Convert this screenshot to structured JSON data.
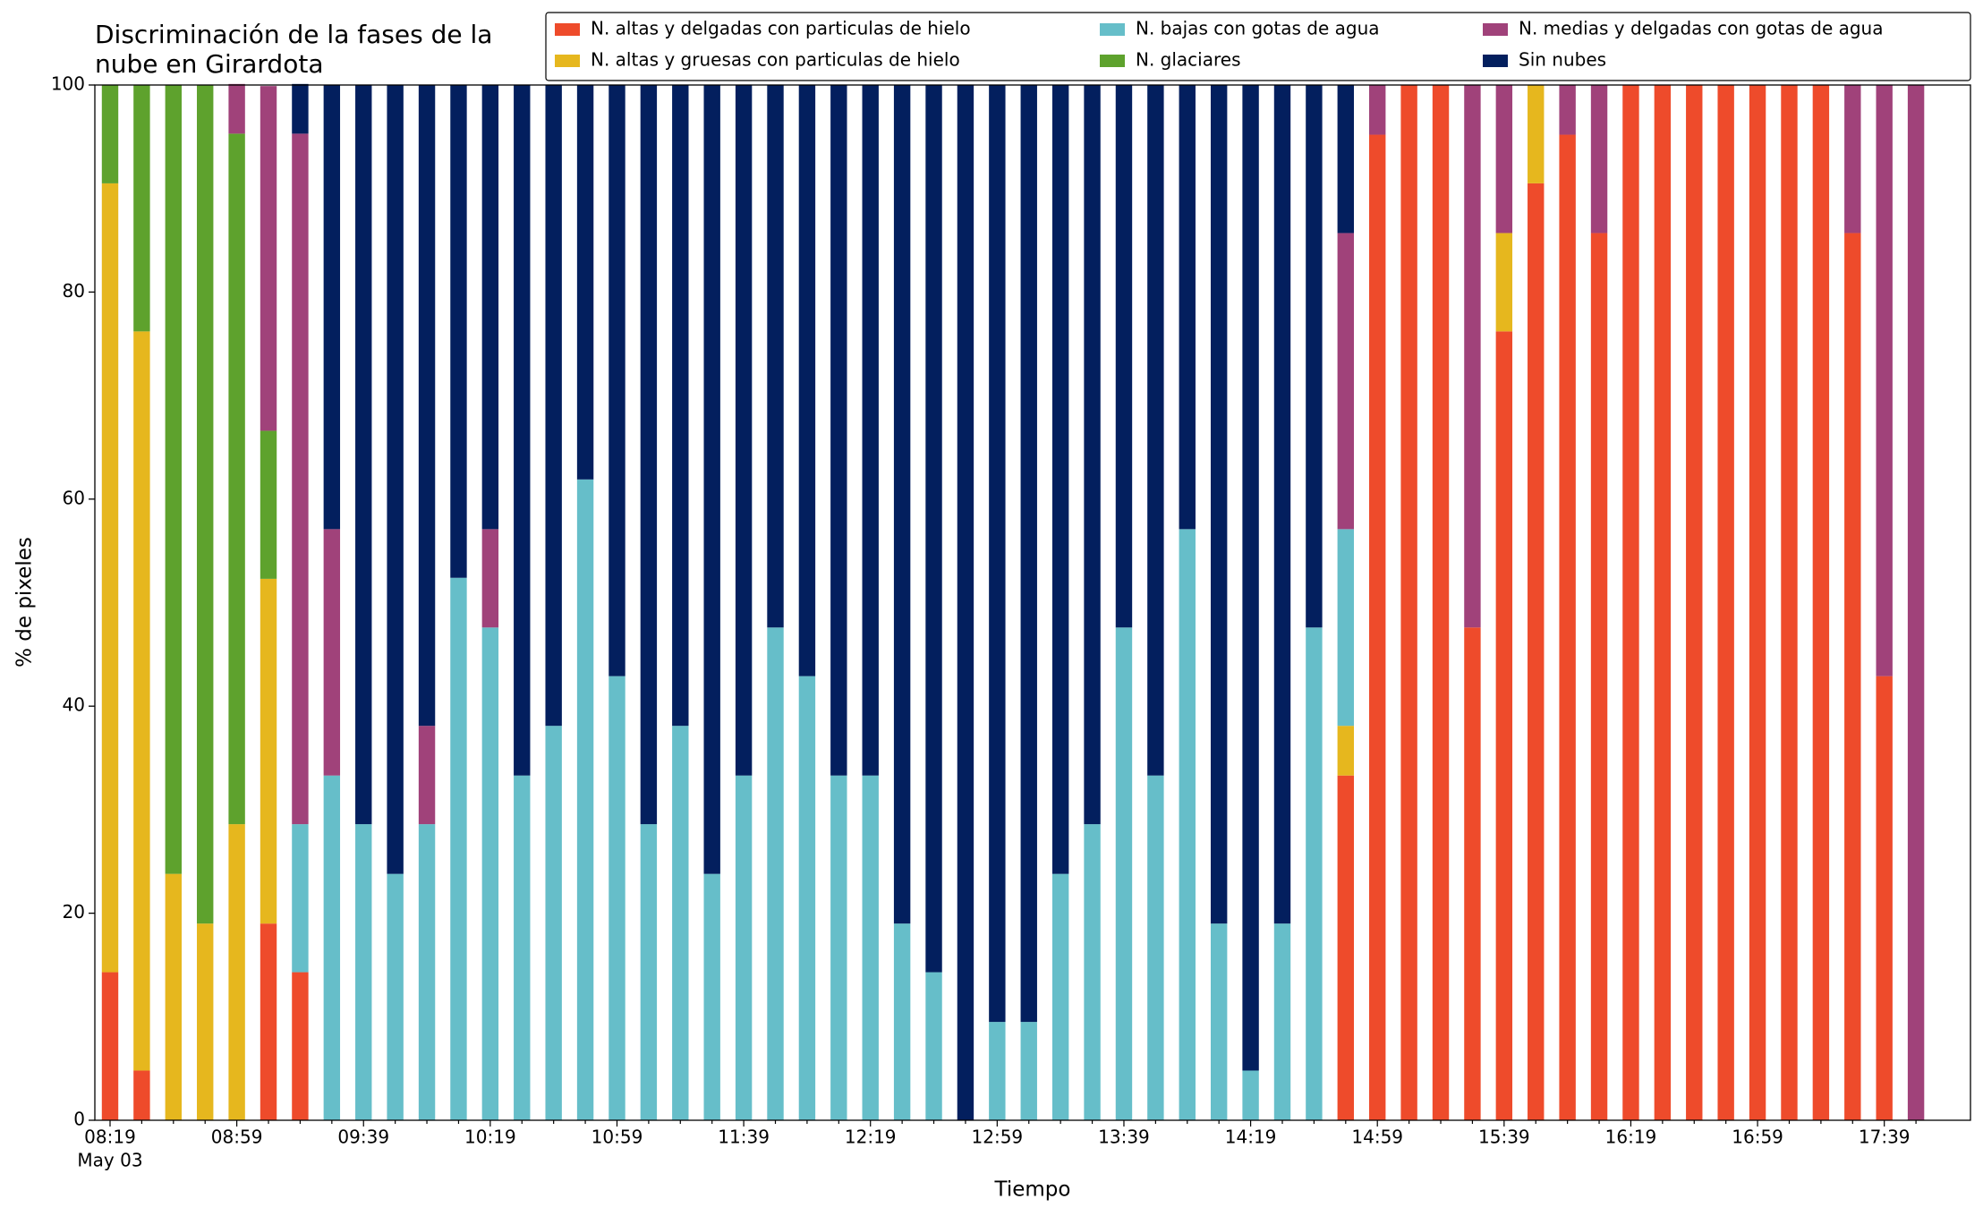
{
  "chart_data": {
    "type": "stacked_bar",
    "title": [
      "Discriminación de la fases de la",
      "nube en Girardota"
    ],
    "xlabel": "Tiempo",
    "ylabel": "% de pixeles",
    "x_date_label": "May 03",
    "categories": [
      "08:19",
      null,
      null,
      null,
      "08:59",
      null,
      null,
      null,
      "09:39",
      null,
      null,
      null,
      "10:19",
      null,
      null,
      null,
      "10:59",
      null,
      null,
      null,
      "11:39",
      null,
      null,
      null,
      "12:19",
      null,
      null,
      null,
      "12:59",
      null,
      null,
      null,
      "13:39",
      null,
      null,
      null,
      "14:19",
      null,
      null,
      null,
      "14:59",
      null,
      null,
      null,
      "15:39",
      null,
      null,
      null,
      "16:19",
      null,
      null,
      null,
      "16:59",
      null,
      null,
      null,
      "17:39",
      null
    ],
    "ylim": [
      0,
      100
    ],
    "yticks": [
      0,
      20,
      40,
      60,
      80,
      100
    ],
    "legend": "upper right",
    "series": [
      {
        "name": "N. altas y delgadas con particulas de hielo",
        "color": "#ee4b2b",
        "values": [
          14.3,
          4.8,
          0,
          0,
          0,
          19.0,
          14.3,
          0,
          0,
          0,
          0,
          0,
          0,
          0,
          0,
          0,
          0,
          0,
          0,
          0,
          0,
          0,
          0,
          0,
          0,
          0,
          0,
          0,
          0,
          0,
          0,
          0,
          0,
          0,
          0,
          0,
          0,
          0,
          0,
          33.3,
          95.2,
          100,
          100,
          47.6,
          76.2,
          90.5,
          95.2,
          85.7,
          100,
          100,
          100,
          100,
          100,
          100,
          100,
          85.7,
          42.9,
          0
        ]
      },
      {
        "name": "N. altas y gruesas con particulas de hielo",
        "color": "#e6b71e",
        "values": [
          76.2,
          71.4,
          23.8,
          19.0,
          28.6,
          33.3,
          0,
          0,
          0,
          0,
          0,
          0,
          0,
          0,
          0,
          0,
          0,
          0,
          0,
          0,
          0,
          0,
          0,
          0,
          0,
          0,
          0,
          0,
          0,
          0,
          0,
          0,
          0,
          0,
          0,
          0,
          0,
          0,
          0,
          4.8,
          0,
          0,
          0,
          0,
          9.5,
          9.5,
          0,
          0,
          0,
          0,
          0,
          0,
          0,
          0,
          0,
          0,
          0,
          0
        ]
      },
      {
        "name": "N. bajas con gotas de agua",
        "color": "#66bec9",
        "values": [
          0,
          0,
          0,
          0,
          0,
          0,
          14.3,
          33.3,
          28.6,
          23.8,
          28.6,
          52.4,
          47.6,
          33.3,
          38.1,
          61.9,
          42.9,
          28.6,
          38.1,
          23.8,
          33.3,
          47.6,
          42.9,
          33.3,
          33.3,
          19.0,
          14.3,
          0,
          9.5,
          9.5,
          23.8,
          28.6,
          47.6,
          33.3,
          57.1,
          19.0,
          4.8,
          19.0,
          47.6,
          19.0,
          0,
          0,
          0,
          0,
          0,
          0,
          0,
          0,
          0,
          0,
          0,
          0,
          0,
          0,
          0,
          0,
          0,
          0
        ]
      },
      {
        "name": "N. glaciares",
        "color": "#5ea22d",
        "values": [
          9.5,
          23.8,
          76.2,
          81.0,
          66.7,
          14.3,
          0,
          0,
          0,
          0,
          0,
          0,
          0,
          0,
          0,
          0,
          0,
          0,
          0,
          0,
          0,
          0,
          0,
          0,
          0,
          0,
          0,
          0,
          0,
          0,
          0,
          0,
          0,
          0,
          0,
          0,
          0,
          0,
          0,
          0,
          0,
          0,
          0,
          0,
          0,
          0,
          0,
          0,
          0,
          0,
          0,
          0,
          0,
          0,
          0,
          0,
          0,
          0
        ]
      },
      {
        "name": "N. medias y delgadas con gotas de agua",
        "color": "#a0427a",
        "values": [
          0,
          0,
          0,
          0,
          4.8,
          33.3,
          66.7,
          23.8,
          0,
          0,
          9.5,
          0,
          9.5,
          0,
          0,
          0,
          0,
          0,
          0,
          0,
          0,
          0,
          0,
          0,
          0,
          0,
          0,
          0,
          0,
          0,
          0,
          0,
          0,
          0,
          0,
          0,
          0,
          0,
          0,
          28.6,
          4.8,
          0,
          0,
          52.4,
          14.3,
          0,
          4.8,
          14.3,
          0,
          0,
          0,
          0,
          0,
          0,
          0,
          14.3,
          57.1,
          100
        ]
      },
      {
        "name": "Sin nubes",
        "color": "#031f5e",
        "values": [
          0,
          0,
          0,
          0,
          0,
          0,
          4.8,
          42.9,
          71.4,
          76.2,
          61.9,
          47.6,
          42.9,
          66.7,
          61.9,
          38.1,
          57.1,
          71.4,
          61.9,
          76.2,
          66.7,
          52.4,
          57.1,
          66.7,
          66.7,
          81.0,
          85.7,
          100,
          90.5,
          90.5,
          76.2,
          71.4,
          52.4,
          66.7,
          42.9,
          81.0,
          95.2,
          81.0,
          52.4,
          14.3,
          0,
          0,
          0,
          0,
          0,
          0,
          0,
          0,
          0,
          0,
          0,
          0,
          0,
          0,
          0,
          0,
          0,
          0
        ]
      }
    ]
  }
}
